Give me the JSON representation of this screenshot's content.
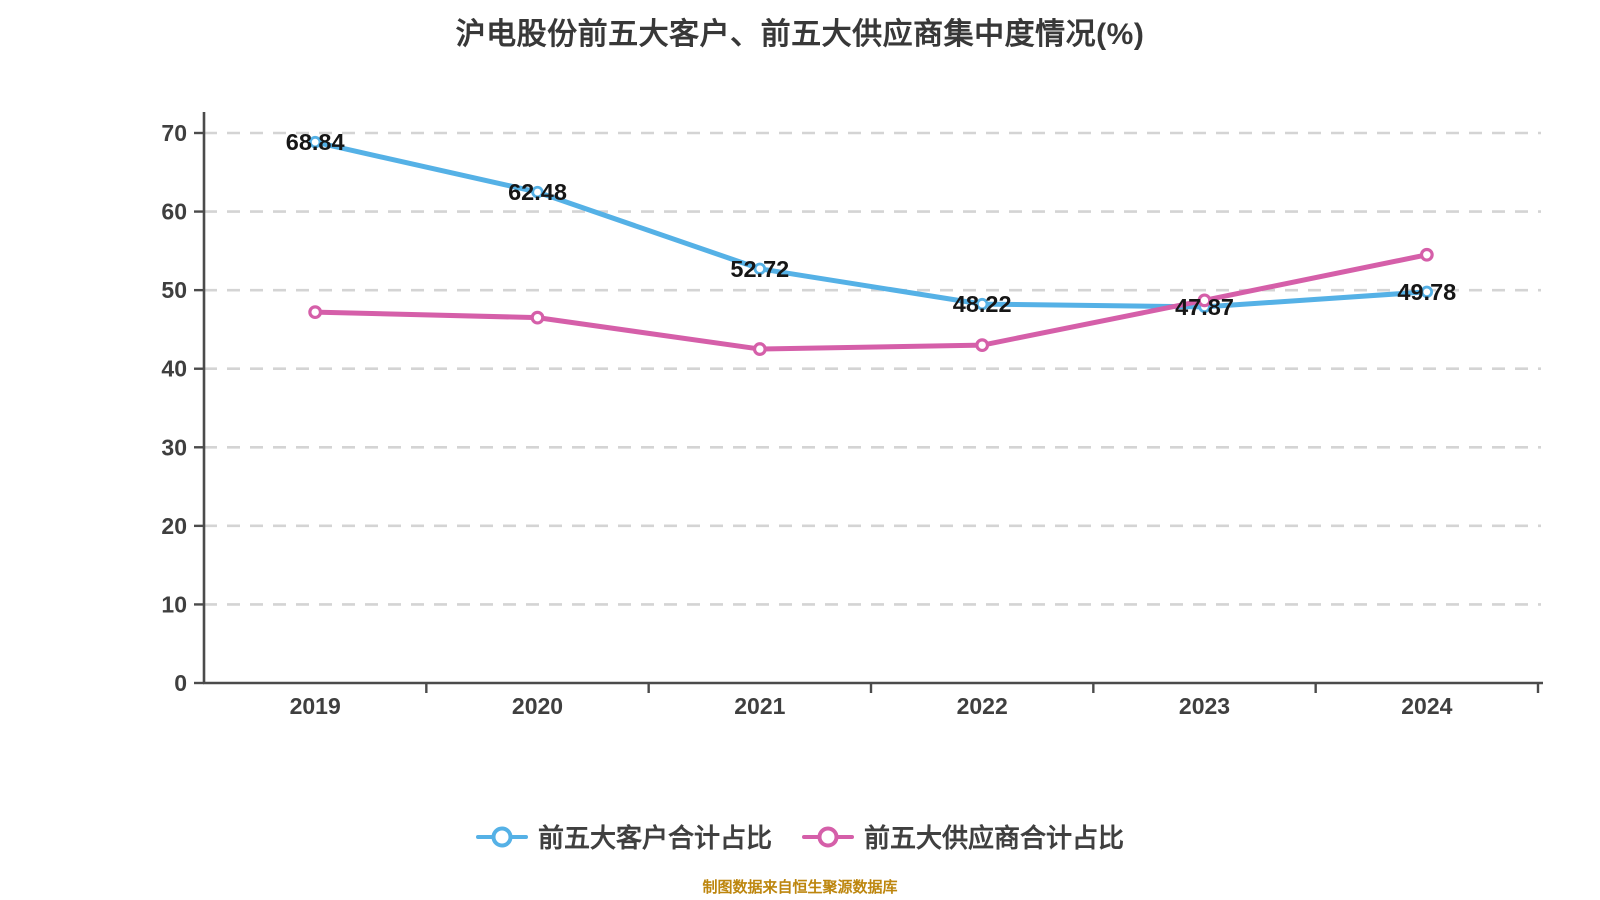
{
  "chart_data": {
    "type": "line",
    "title": "沪电股份前五大客户、前五大供应商集中度情况(%)",
    "categories": [
      "2019",
      "2020",
      "2021",
      "2022",
      "2023",
      "2024"
    ],
    "series": [
      {
        "name": "前五大客户合计占比",
        "color": "#55b1e6",
        "values": [
          68.84,
          62.48,
          52.72,
          48.22,
          47.87,
          49.78
        ],
        "point_labels": [
          "68.84",
          "62.48",
          "52.72",
          "48.22",
          "47.87",
          "49.78"
        ]
      },
      {
        "name": "前五大供应商合计占比",
        "color": "#d55fa9",
        "values": [
          47.2,
          46.5,
          42.5,
          43.0,
          48.7,
          54.5
        ],
        "point_labels": []
      }
    ],
    "xlabel": "",
    "ylabel": "",
    "ylim": [
      0,
      70
    ],
    "yticks": [
      0,
      10,
      20,
      30,
      40,
      50,
      60,
      70
    ],
    "grid": "horizontal-dashed",
    "legend_position": "bottom-center"
  },
  "source_note": "制图数据来自恒生聚源数据库",
  "colors": {
    "background": "#ffffff",
    "title_text": "#383838",
    "customer_line": "#55b1e6",
    "supplier_line": "#d55fa9",
    "gridline": "#d4d4d4",
    "axis": "#4b4b4b",
    "tick_text": "#3f3f3f",
    "data_label": "#161616",
    "legend_text": "#404040",
    "source_note_text": "#bd860e"
  }
}
